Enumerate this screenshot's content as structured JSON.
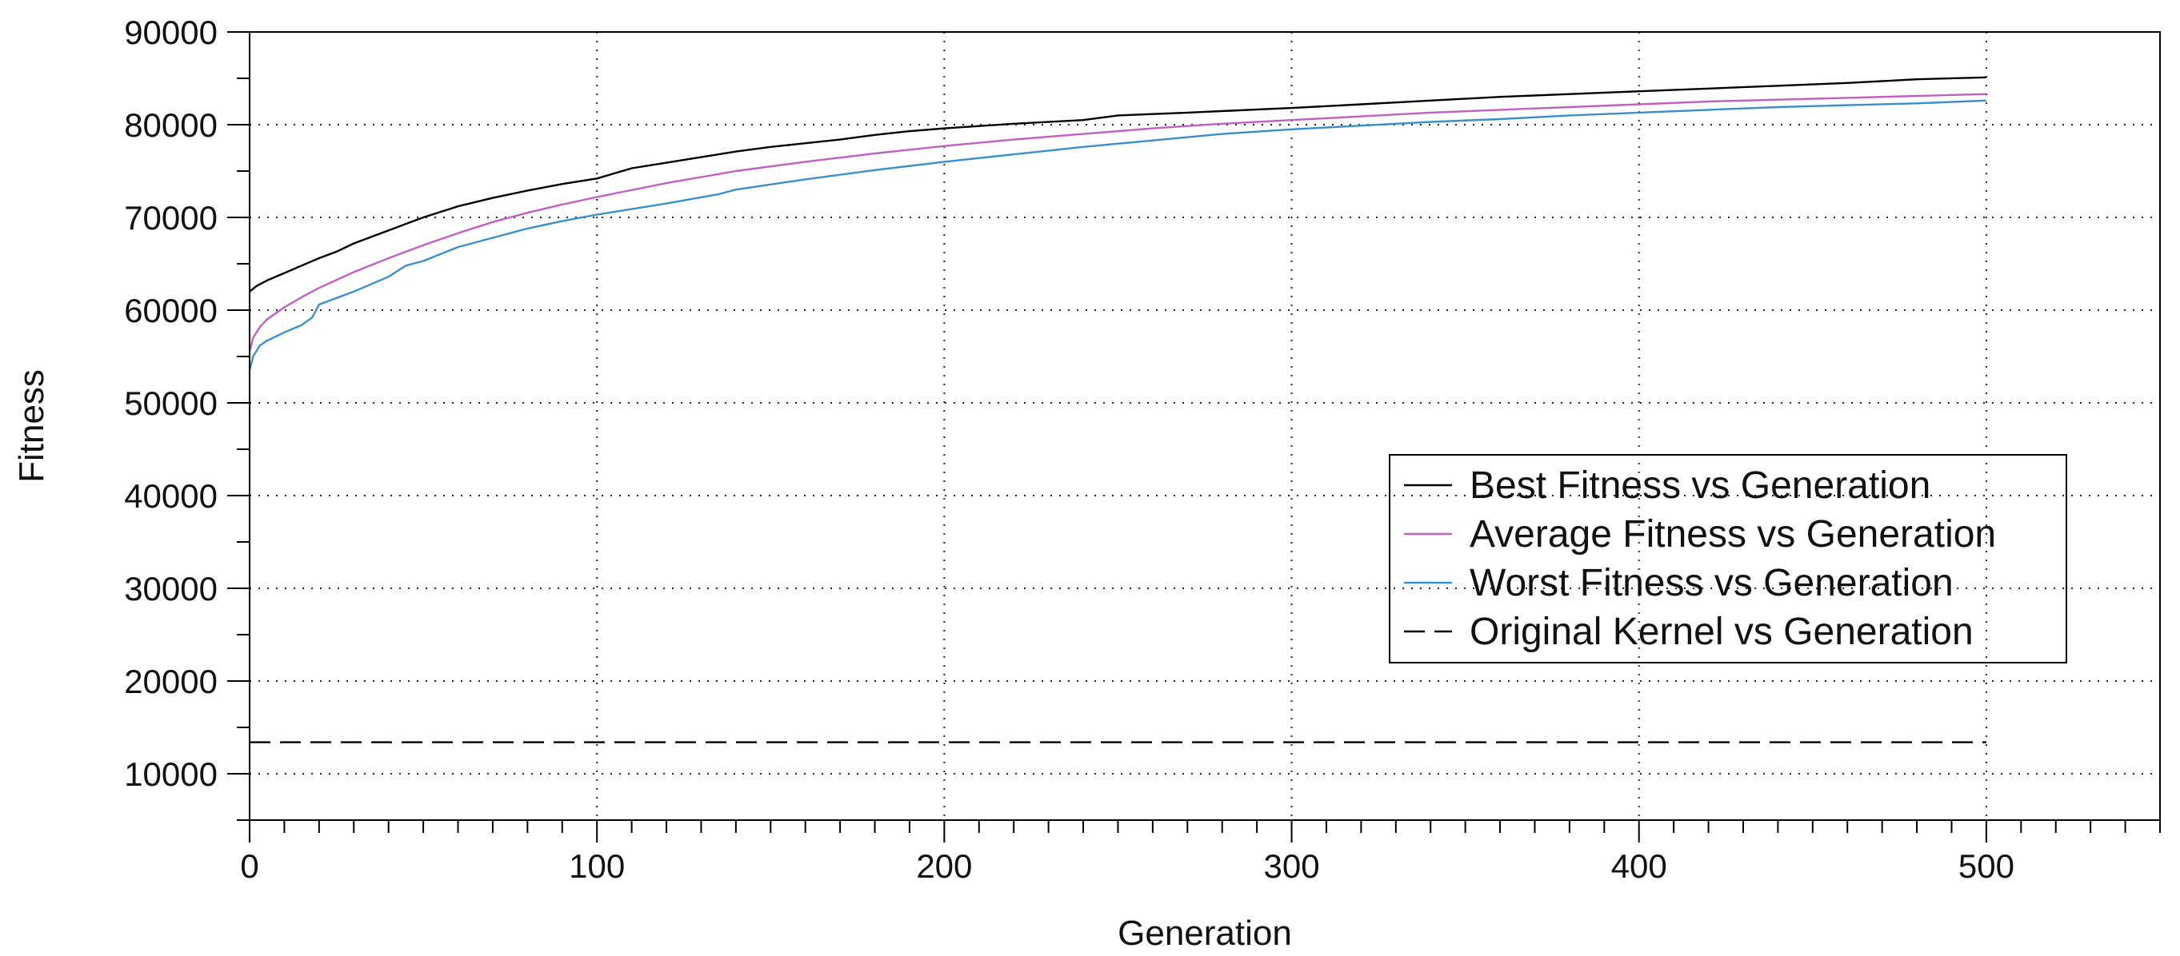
{
  "chart_data": {
    "type": "line",
    "title": "",
    "xlabel": "Generation",
    "ylabel": "Fitness",
    "xlim": [
      0,
      550
    ],
    "ylim": [
      5000,
      90000
    ],
    "x_ticks": [
      0,
      100,
      200,
      300,
      400,
      500
    ],
    "y_ticks": [
      10000,
      20000,
      30000,
      40000,
      50000,
      60000,
      70000,
      80000,
      90000
    ],
    "grid": true,
    "legend_position": "center-right",
    "series": [
      {
        "name": "Best Fitness vs Generation",
        "color": "#000000",
        "dash": "solid",
        "x": [
          0,
          2,
          5,
          10,
          15,
          20,
          25,
          30,
          40,
          50,
          60,
          70,
          80,
          90,
          100,
          110,
          120,
          130,
          140,
          150,
          160,
          170,
          180,
          190,
          200,
          220,
          240,
          250,
          270,
          300,
          320,
          340,
          360,
          380,
          400,
          420,
          440,
          460,
          480,
          500
        ],
        "y": [
          62000,
          62600,
          63200,
          64000,
          64800,
          65600,
          66300,
          67200,
          68600,
          70000,
          71200,
          72100,
          72900,
          73600,
          74200,
          75300,
          75900,
          76500,
          77100,
          77600,
          78000,
          78400,
          78900,
          79300,
          79600,
          80100,
          80500,
          81000,
          81300,
          81800,
          82200,
          82600,
          83000,
          83300,
          83600,
          83900,
          84200,
          84500,
          84900,
          85100
        ]
      },
      {
        "name": "Average Fitness vs Generation",
        "color": "#c060c0",
        "dash": "solid",
        "x": [
          0,
          1,
          3,
          5,
          10,
          15,
          20,
          30,
          40,
          50,
          60,
          70,
          80,
          90,
          100,
          120,
          140,
          160,
          180,
          200,
          220,
          240,
          260,
          280,
          300,
          320,
          340,
          360,
          380,
          400,
          420,
          440,
          460,
          480,
          500
        ],
        "y": [
          55500,
          57000,
          58200,
          59000,
          60300,
          61400,
          62400,
          64100,
          65600,
          67000,
          68300,
          69500,
          70500,
          71400,
          72200,
          73700,
          75000,
          76000,
          76900,
          77700,
          78400,
          79000,
          79600,
          80100,
          80500,
          80900,
          81300,
          81600,
          81900,
          82200,
          82500,
          82700,
          82900,
          83100,
          83300
        ]
      },
      {
        "name": "Worst Fitness vs Generation",
        "color": "#3a8fc8",
        "dash": "solid",
        "x": [
          0,
          1,
          3,
          5,
          10,
          15,
          18,
          20,
          30,
          40,
          45,
          50,
          60,
          70,
          80,
          90,
          100,
          120,
          135,
          140,
          160,
          180,
          200,
          220,
          240,
          260,
          280,
          300,
          320,
          340,
          360,
          380,
          400,
          420,
          440,
          460,
          480,
          500
        ],
        "y": [
          53500,
          55000,
          56200,
          56700,
          57600,
          58400,
          59200,
          60600,
          62000,
          63600,
          64800,
          65300,
          66800,
          67800,
          68800,
          69600,
          70300,
          71500,
          72500,
          73000,
          74100,
          75100,
          76000,
          76800,
          77600,
          78300,
          79000,
          79500,
          79900,
          80300,
          80600,
          81000,
          81300,
          81600,
          81900,
          82100,
          82300,
          82600
        ]
      },
      {
        "name": "Original Kernel vs Generation",
        "color": "#000000",
        "dash": "dashed",
        "x": [
          0,
          500
        ],
        "y": [
          13400,
          13400
        ]
      }
    ]
  }
}
